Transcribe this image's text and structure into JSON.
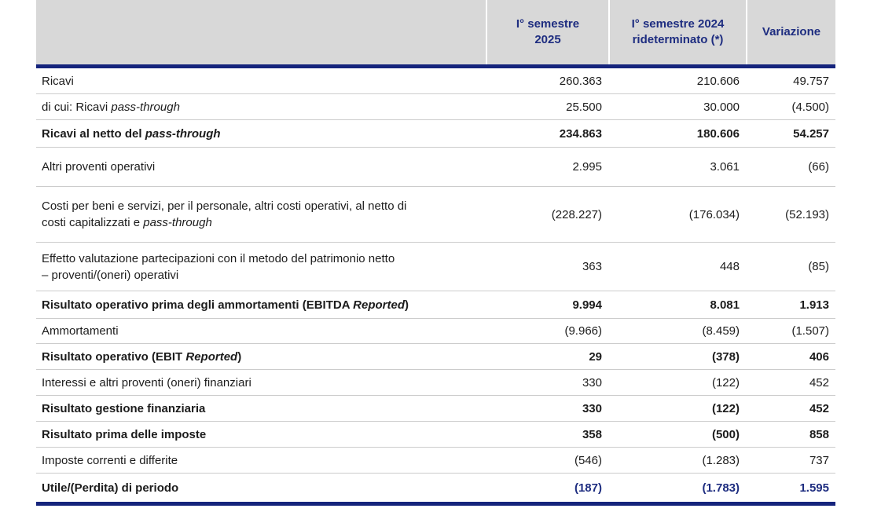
{
  "colors": {
    "header_background": "#d8d8d8",
    "navy_text": "#1e2d80",
    "thick_rule": "#15247c",
    "row_separator": "#cccccc",
    "body_text": "#1c1c1c"
  },
  "table": {
    "column_headers": [
      {
        "lines": [
          "I° semestre",
          "2025"
        ]
      },
      {
        "lines": [
          "I° semestre 2024",
          "rideterminato (*)"
        ]
      },
      {
        "lines": [
          "Variazione"
        ]
      }
    ],
    "rows": [
      {
        "label": [
          {
            "text": "Ricavi"
          }
        ],
        "values": [
          "260.363",
          "210.606",
          "49.757"
        ]
      },
      {
        "label": [
          {
            "text": "di cui: Ricavi "
          },
          {
            "text": "pass-through",
            "italic": true
          }
        ],
        "values": [
          "25.500",
          "30.000",
          "(4.500)"
        ]
      },
      {
        "label": [
          {
            "text": "Ricavi al netto del "
          },
          {
            "text": "pass-through",
            "italic": true
          }
        ],
        "values": [
          "234.863",
          "180.606",
          "54.257"
        ],
        "bold": true
      },
      {
        "label": [
          {
            "text": "Altri proventi operativi"
          }
        ],
        "values": [
          "2.995",
          "3.061",
          "(66)"
        ]
      },
      {
        "label": [
          {
            "text": "Costi per beni e servizi, per il personale, altri costi operativi, al netto di"
          },
          {
            "break": true
          },
          {
            "text": "costi capitalizzati e "
          },
          {
            "text": "pass-through",
            "italic": true
          }
        ],
        "values": [
          "(228.227)",
          "(176.034)",
          "(52.193)"
        ]
      },
      {
        "label": [
          {
            "text": "Effetto valutazione partecipazioni con il metodo del patrimonio netto"
          },
          {
            "break": true
          },
          {
            "text": "– proventi/(oneri) operativi"
          }
        ],
        "values": [
          "363",
          "448",
          "(85)"
        ]
      },
      {
        "label": [
          {
            "text": "Risultato operativo prima degli ammortamenti (EBITDA "
          },
          {
            "text": "Reported",
            "italic": true
          },
          {
            "text": ")"
          }
        ],
        "values": [
          "9.994",
          "8.081",
          "1.913"
        ],
        "bold": true
      },
      {
        "label": [
          {
            "text": "Ammortamenti"
          }
        ],
        "values": [
          "(9.966)",
          "(8.459)",
          "(1.507)"
        ]
      },
      {
        "label": [
          {
            "text": "Risultato operativo (EBIT "
          },
          {
            "text": "Reported",
            "italic": true
          },
          {
            "text": ")"
          }
        ],
        "values": [
          "29",
          "(378)",
          "406"
        ],
        "bold": true
      },
      {
        "label": [
          {
            "text": "Interessi e altri proventi (oneri) finanziari"
          }
        ],
        "values": [
          "330",
          "(122)",
          "452"
        ]
      },
      {
        "label": [
          {
            "text": "Risultato gestione finanziaria"
          }
        ],
        "values": [
          "330",
          "(122)",
          "452"
        ],
        "bold": true
      },
      {
        "label": [
          {
            "text": "Risultato prima delle imposte"
          }
        ],
        "values": [
          "358",
          "(500)",
          "858"
        ],
        "bold": true
      },
      {
        "label": [
          {
            "text": "Imposte correnti e differite"
          }
        ],
        "values": [
          "(546)",
          "(1.283)",
          "737"
        ]
      },
      {
        "label": [
          {
            "text": "Utile/(Perdita) di periodo"
          }
        ],
        "values": [
          "(187)",
          "(1.783)",
          "1.595"
        ],
        "bold": true,
        "values_navy": true
      }
    ]
  }
}
